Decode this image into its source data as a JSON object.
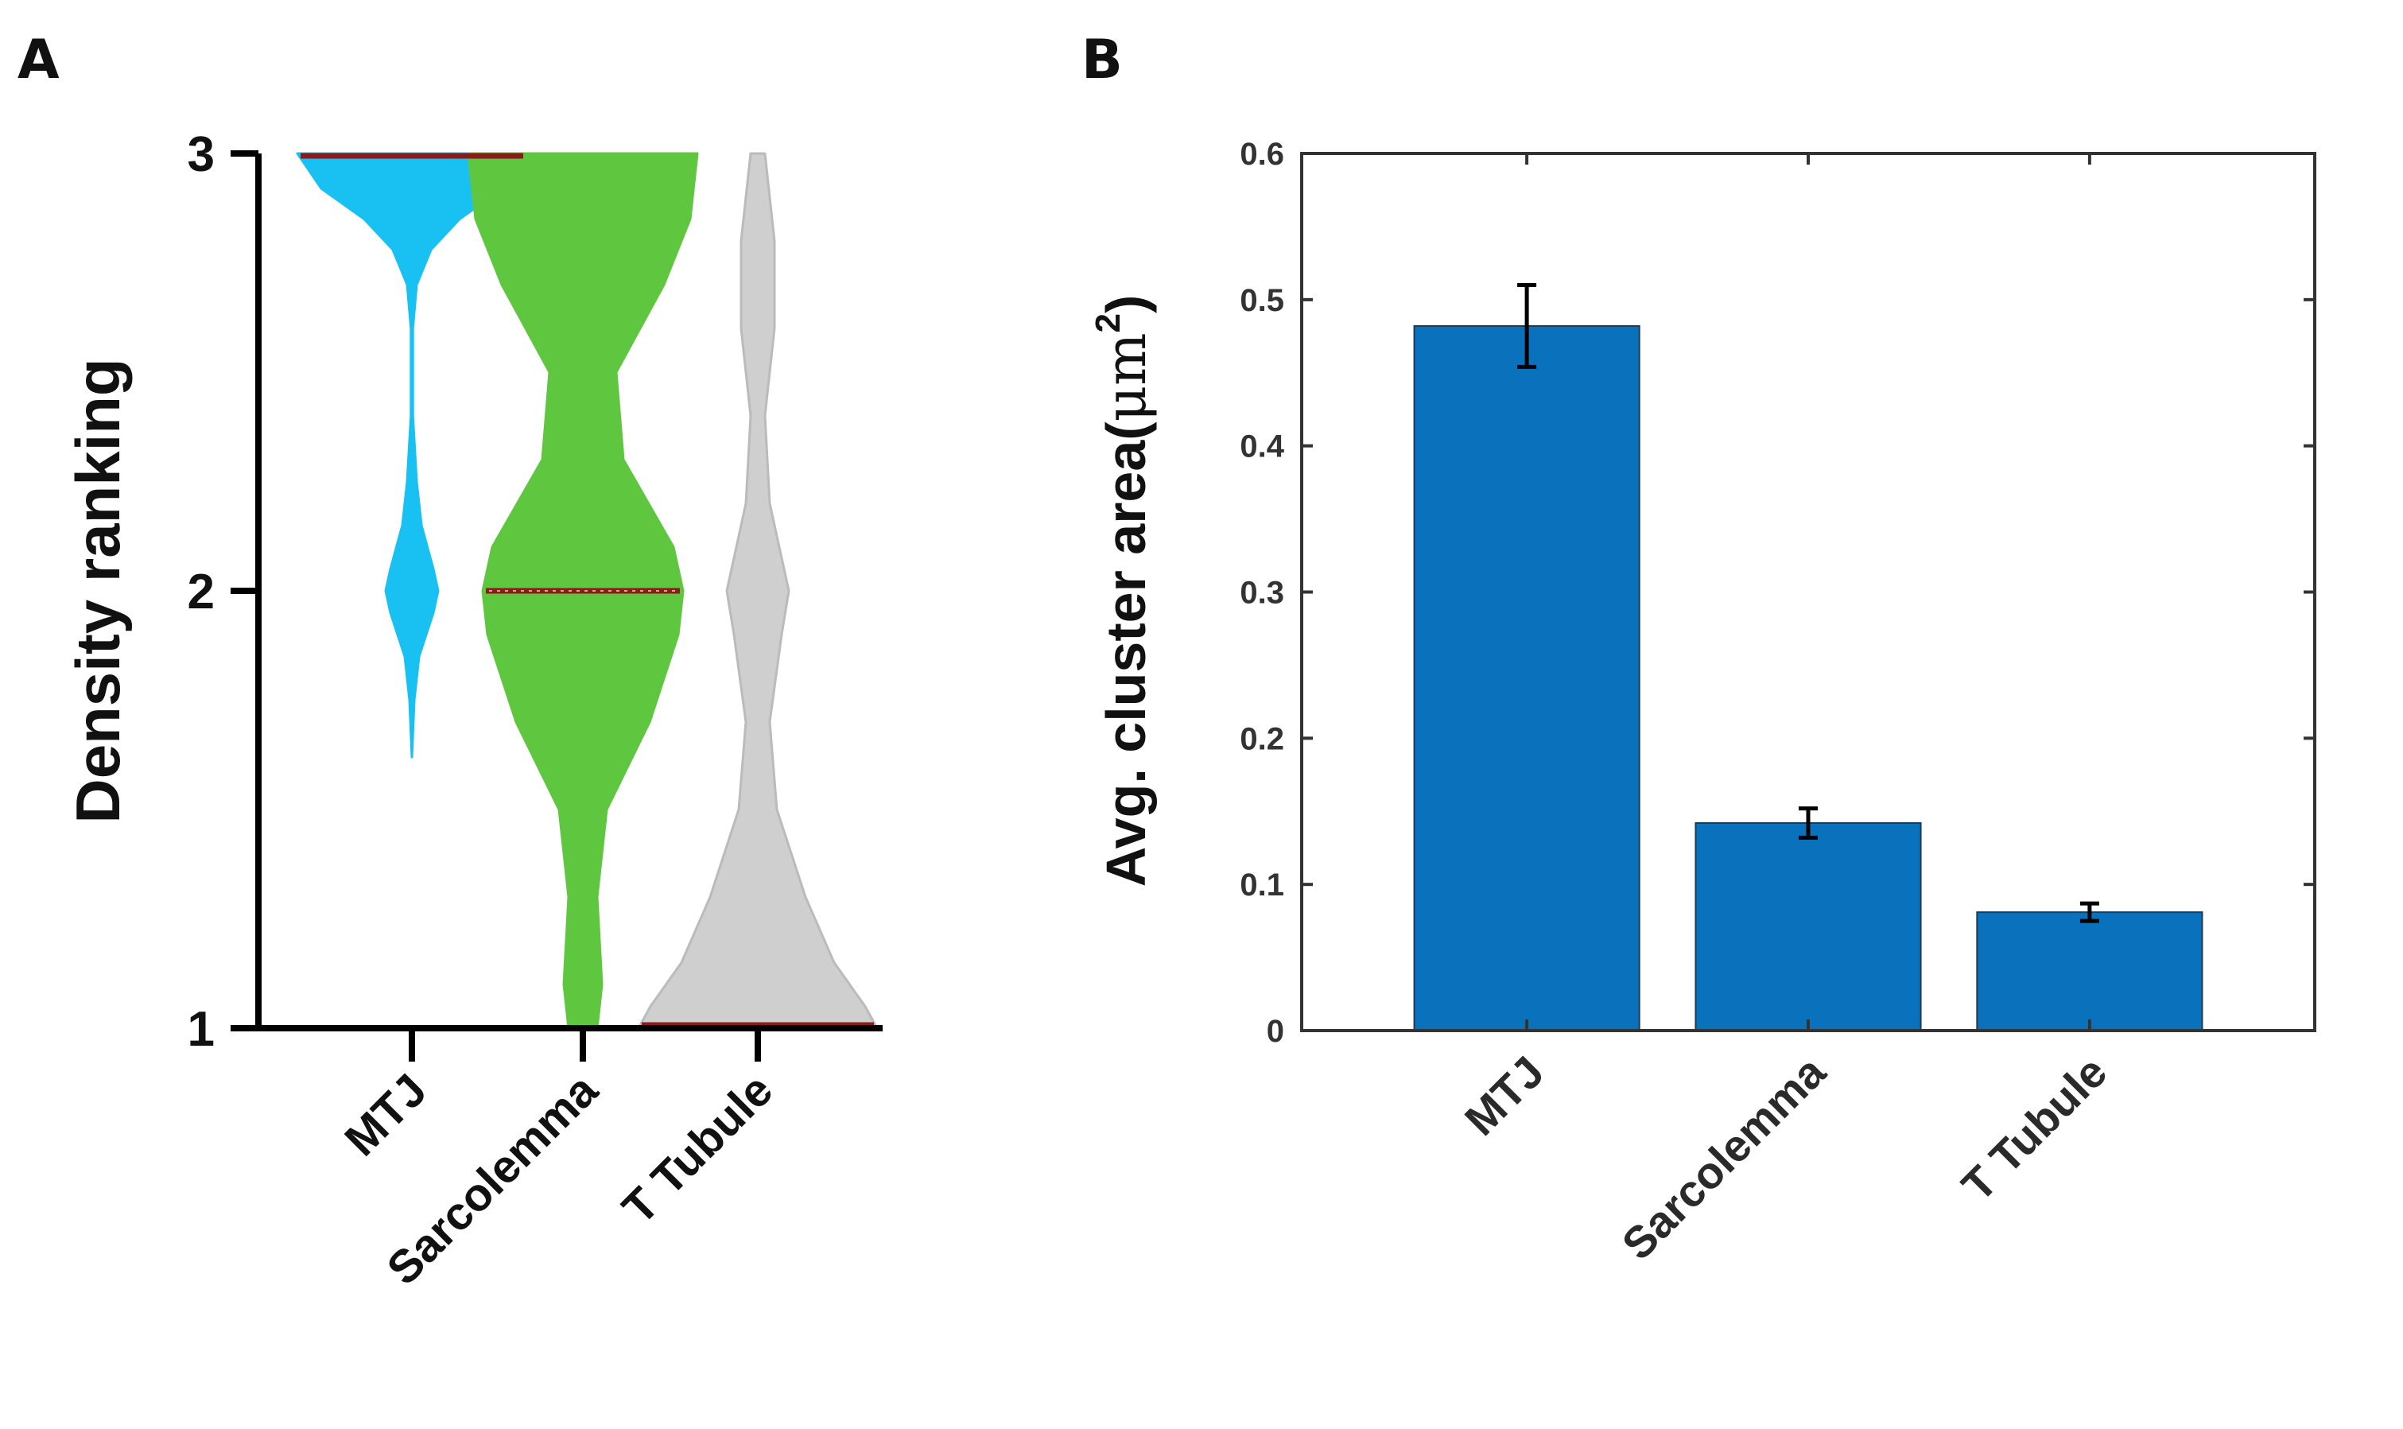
{
  "panels": {
    "a": "A",
    "b": "B"
  },
  "chart_data": [
    {
      "type": "violin",
      "title": "",
      "xlabel": "",
      "ylabel": "Density ranking",
      "ylim": [
        1,
        3
      ],
      "yticks": [
        "1",
        "2",
        "3"
      ],
      "categories": [
        "MTJ",
        "Sarcolemma",
        "T Tubule"
      ],
      "colors": [
        "#19C1F2",
        "#5FC63F",
        "#CFCFCF"
      ],
      "median_color": "#8B1A1A",
      "medians": [
        3,
        2,
        1
      ],
      "series": [
        {
          "name": "MTJ",
          "y": [
            1.62,
            1.75,
            1.85,
            1.95,
            2.0,
            2.05,
            2.15,
            2.25,
            2.4,
            2.6,
            2.7,
            2.78,
            2.85,
            2.92,
            3.0
          ],
          "width": [
            0.0,
            0.01,
            0.03,
            0.09,
            0.11,
            0.09,
            0.04,
            0.02,
            0.004,
            0.004,
            0.02,
            0.08,
            0.2,
            0.38,
            0.48
          ]
        },
        {
          "name": "Sarcolemma",
          "y": [
            1.0,
            1.1,
            1.3,
            1.5,
            1.7,
            1.9,
            2.0,
            2.1,
            2.3,
            2.5,
            2.7,
            2.85,
            3.0
          ],
          "width": [
            0.06,
            0.08,
            0.06,
            0.1,
            0.28,
            0.4,
            0.42,
            0.38,
            0.17,
            0.14,
            0.34,
            0.45,
            0.48
          ]
        },
        {
          "name": "T Tubule",
          "y": [
            1.0,
            1.05,
            1.15,
            1.3,
            1.5,
            1.7,
            1.9,
            2.0,
            2.1,
            2.2,
            2.4,
            2.6,
            2.8,
            3.0
          ],
          "width": [
            0.5,
            0.45,
            0.32,
            0.2,
            0.08,
            0.05,
            0.1,
            0.13,
            0.09,
            0.05,
            0.03,
            0.07,
            0.07,
            0.03
          ]
        }
      ]
    },
    {
      "type": "bar",
      "title": "",
      "xlabel": "",
      "ylabel_main": "Avg. cluster area(",
      "ylabel_unit": "μm",
      "ylabel_sup": "2",
      "ylabel_close": ")",
      "ylim": [
        0,
        0.6
      ],
      "yticks": [
        "0",
        "0.1",
        "0.2",
        "0.3",
        "0.4",
        "0.5",
        "0.6"
      ],
      "categories": [
        "MTJ",
        "Sarcolemma",
        "T Tubule"
      ],
      "values": [
        0.482,
        0.142,
        0.081
      ],
      "errors": [
        0.028,
        0.01,
        0.006
      ],
      "bar_color": "#0A72BD",
      "x_positions": [
        1,
        2,
        3
      ],
      "xlim": [
        0.2,
        3.8
      ]
    }
  ]
}
